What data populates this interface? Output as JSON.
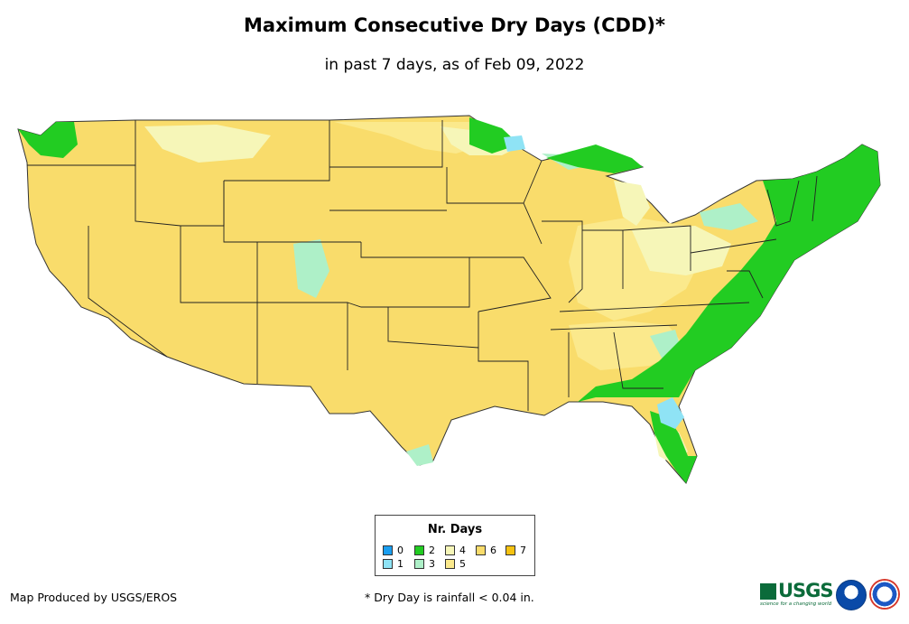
{
  "title": "Maximum Consecutive Dry Days (CDD)*",
  "subtitle": "in past 7 days, as of Feb 09, 2022",
  "legend": {
    "title": "Nr. Days",
    "items": [
      {
        "label": "0",
        "color": "#1a9ef0"
      },
      {
        "label": "1",
        "color": "#8fe3f5"
      },
      {
        "label": "2",
        "color": "#22cc22"
      },
      {
        "label": "3",
        "color": "#aef0c8"
      },
      {
        "label": "4",
        "color": "#f6f6b8"
      },
      {
        "label": "5",
        "color": "#fbe98c"
      },
      {
        "label": "6",
        "color": "#f9dc6b"
      },
      {
        "label": "7",
        "color": "#f5c211"
      }
    ]
  },
  "footer": {
    "credit": "Map Produced by USGS/EROS",
    "note": "* Dry Day is rainfall < 0.04 in."
  },
  "logos": {
    "usgs": "USGS",
    "usgs_tagline": "science for a changing world"
  }
}
